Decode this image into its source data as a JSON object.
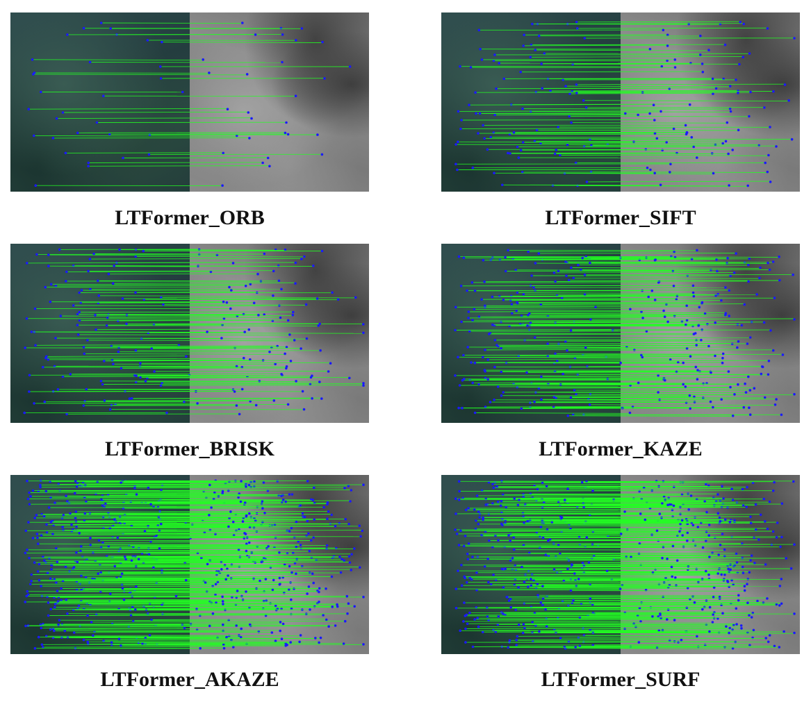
{
  "panels": [
    {
      "caption": "LTFormer_ORB",
      "density": 30
    },
    {
      "caption": "LTFormer_SIFT",
      "density": 90
    },
    {
      "caption": "LTFormer_BRISK",
      "density": 110
    },
    {
      "caption": "LTFormer_KAZE",
      "density": 170
    },
    {
      "caption": "LTFormer_AKAZE",
      "density": 320
    },
    {
      "caption": "LTFormer_SURF",
      "density": 300
    }
  ],
  "colors": {
    "match_line": "#22ff22",
    "keypoint": "#1a1aff"
  }
}
